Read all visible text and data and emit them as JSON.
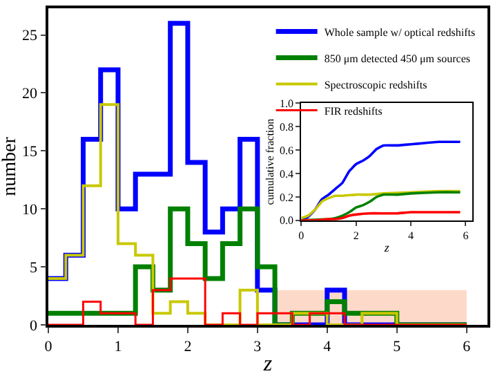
{
  "chart_data": [
    {
      "type": "histogram",
      "xlabel": "z",
      "ylabel": "number",
      "xlim": [
        0,
        6.3
      ],
      "ylim": [
        0,
        27.3
      ],
      "xticks": [
        0,
        1,
        2,
        3,
        4,
        5,
        6
      ],
      "yticks": [
        0,
        5,
        10,
        15,
        20,
        25
      ],
      "legend": "top right",
      "bins": [
        0,
        0.25,
        0.5,
        0.75,
        1,
        1.25,
        1.5,
        1.75,
        2,
        2.25,
        2.5,
        2.75,
        3,
        3.25,
        3.5,
        3.75,
        4,
        4.25,
        4.5,
        4.75,
        5,
        5.25,
        5.5,
        5.75,
        6
      ],
      "series": [
        {
          "type": "area",
          "color": "#fcd9c8",
          "x": [
            3.25,
            6
          ],
          "values": [
            3,
            3
          ]
        },
        {
          "name": "Whole sample w/ optical redshifts",
          "color": "#0000ff",
          "values": [
            4,
            6,
            16,
            22,
            10,
            13,
            13,
            26,
            14,
            8,
            10,
            16,
            3,
            0,
            0,
            0,
            3,
            0,
            0,
            0,
            0,
            0,
            0,
            0
          ]
        },
        {
          "name": "850 μm detected 450 μm sources",
          "color": "#008000",
          "values": [
            1,
            1,
            1,
            1,
            1,
            5,
            3,
            10,
            7,
            4,
            7,
            10,
            5,
            0,
            1,
            1,
            2,
            1,
            1,
            1,
            0,
            0,
            0,
            0
          ]
        },
        {
          "name": "Spectroscopic redshifts",
          "color": "#c8c800",
          "values": [
            4,
            6,
            12,
            19,
            7,
            6,
            1,
            2,
            1,
            0,
            0,
            3,
            0,
            0,
            1,
            1,
            0,
            0,
            1,
            1,
            0,
            0,
            0,
            0
          ]
        },
        {
          "name": "FIR redshifts",
          "color": "#ff0000",
          "values": [
            0,
            0,
            2,
            1,
            1,
            0,
            3,
            4,
            4,
            0,
            1,
            0,
            1,
            1,
            0,
            1,
            1,
            0,
            0,
            0,
            0,
            0,
            0,
            0
          ]
        }
      ]
    },
    {
      "type": "line",
      "xlabel": "z",
      "ylabel": "cumulative fraction",
      "xlim": [
        0,
        6.25
      ],
      "ylim": [
        0,
        1
      ],
      "xticks": [
        0,
        2,
        4,
        6
      ],
      "yticks": [
        {
          "value": 0,
          "label": "0.0"
        },
        0.2,
        0.4,
        0.6,
        0.8,
        {
          "value": 1,
          "label": "1.0"
        }
      ],
      "series": [
        {
          "color": "#0000ff",
          "x": [
            0,
            0.25,
            0.5,
            0.75,
            1,
            1.25,
            1.5,
            1.75,
            2,
            2.25,
            2.5,
            2.75,
            3,
            3.5,
            4,
            4.5,
            5,
            5.8
          ],
          "values": [
            0.0,
            0.03,
            0.09,
            0.18,
            0.22,
            0.27,
            0.32,
            0.42,
            0.48,
            0.51,
            0.55,
            0.61,
            0.64,
            0.64,
            0.65,
            0.66,
            0.67,
            0.67
          ]
        },
        {
          "color": "#c8c800",
          "x": [
            0,
            0.25,
            0.5,
            0.75,
            1,
            1.25,
            1.5,
            2,
            2.5,
            3,
            4,
            5,
            5.8
          ],
          "values": [
            0.02,
            0.04,
            0.09,
            0.16,
            0.19,
            0.21,
            0.21,
            0.22,
            0.22,
            0.23,
            0.24,
            0.25,
            0.25
          ]
        },
        {
          "color": "#008000",
          "x": [
            0,
            1,
            1.25,
            1.5,
            1.75,
            2,
            2.25,
            2.5,
            2.75,
            3,
            3.5,
            4,
            5,
            5.8
          ],
          "values": [
            0,
            0.01,
            0.02,
            0.04,
            0.07,
            0.11,
            0.13,
            0.16,
            0.2,
            0.22,
            0.22,
            0.23,
            0.24,
            0.24
          ]
        },
        {
          "color": "#ff0000",
          "x": [
            0,
            0.5,
            1,
            1.25,
            1.5,
            1.75,
            2,
            2.5,
            3,
            3.5,
            4,
            5,
            5.8
          ],
          "values": [
            0,
            0.0,
            0.01,
            0.01,
            0.02,
            0.04,
            0.05,
            0.06,
            0.06,
            0.06,
            0.07,
            0.07,
            0.07
          ]
        }
      ]
    }
  ]
}
